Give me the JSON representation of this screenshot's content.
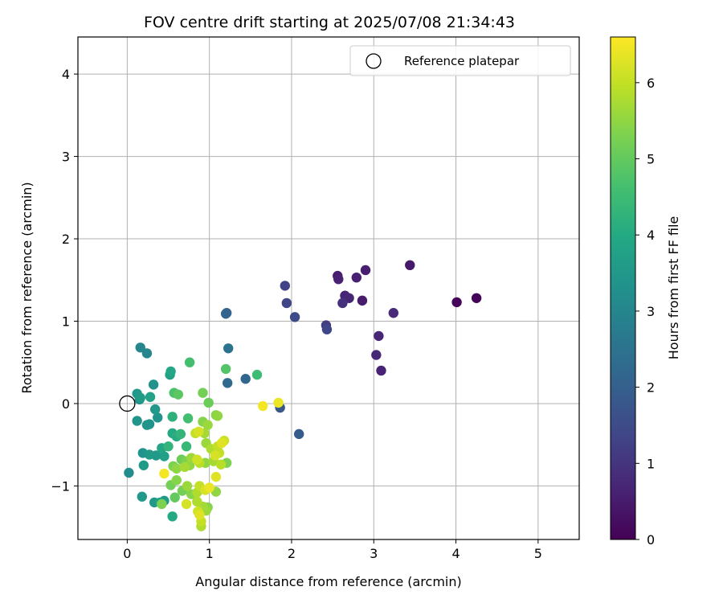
{
  "chart_data": {
    "type": "scatter",
    "title": "FOV centre drift starting at 2025/07/08 21:34:43",
    "xlabel": "Angular distance from reference (arcmin)",
    "ylabel": "Rotation from reference (arcmin)",
    "xlim": [
      -0.6,
      5.5
    ],
    "ylim": [
      -1.65,
      4.45
    ],
    "xticks": [
      0,
      1,
      2,
      3,
      4,
      5
    ],
    "xtick_labels": [
      "0",
      "1",
      "2",
      "3",
      "4",
      "5"
    ],
    "yticks": [
      -1,
      0,
      1,
      2,
      3,
      4
    ],
    "ytick_labels": [
      "−1",
      "0",
      "1",
      "2",
      "3",
      "4"
    ],
    "grid": true,
    "legend": {
      "position": "upper right",
      "entries": [
        "Reference platepar"
      ]
    },
    "reference_point": {
      "x": 0,
      "y": 0,
      "marker": "open-circle"
    },
    "colorbar": {
      "label": "Hours from first FF file",
      "min": 0,
      "max": 6.6,
      "ticks": [
        0,
        1,
        2,
        3,
        4,
        5,
        6
      ],
      "tick_labels": [
        "0",
        "1",
        "2",
        "3",
        "4",
        "5",
        "6"
      ],
      "colormap": "viridis"
    },
    "series": [
      {
        "points": [
          {
            "x": 4.25,
            "y": 1.28,
            "c": 0.05
          },
          {
            "x": 4.01,
            "y": 1.23,
            "c": 0.1
          },
          {
            "x": 3.44,
            "y": 1.68,
            "c": 0.45
          },
          {
            "x": 3.24,
            "y": 1.1,
            "c": 0.8
          },
          {
            "x": 3.09,
            "y": 0.4,
            "c": 0.65
          },
          {
            "x": 3.06,
            "y": 0.82,
            "c": 0.7
          },
          {
            "x": 3.03,
            "y": 0.59,
            "c": 0.75
          },
          {
            "x": 2.9,
            "y": 1.62,
            "c": 0.55
          },
          {
            "x": 2.86,
            "y": 1.25,
            "c": 0.5
          },
          {
            "x": 2.79,
            "y": 1.53,
            "c": 0.6
          },
          {
            "x": 2.7,
            "y": 1.28,
            "c": 0.7
          },
          {
            "x": 2.65,
            "y": 1.31,
            "c": 0.65
          },
          {
            "x": 2.62,
            "y": 1.22,
            "c": 0.9
          },
          {
            "x": 2.57,
            "y": 1.51,
            "c": 0.6
          },
          {
            "x": 2.56,
            "y": 1.55,
            "c": 0.55
          },
          {
            "x": 2.43,
            "y": 0.9,
            "c": 1.4
          },
          {
            "x": 2.42,
            "y": 0.95,
            "c": 1.2
          },
          {
            "x": 2.09,
            "y": -0.37,
            "c": 1.9
          },
          {
            "x": 2.04,
            "y": 1.05,
            "c": 1.5
          },
          {
            "x": 1.94,
            "y": 1.22,
            "c": 1.35
          },
          {
            "x": 1.92,
            "y": 1.43,
            "c": 1.3
          },
          {
            "x": 1.86,
            "y": -0.05,
            "c": 1.8
          },
          {
            "x": 1.44,
            "y": 0.3,
            "c": 2.2
          },
          {
            "x": 1.23,
            "y": 0.67,
            "c": 2.5
          },
          {
            "x": 1.22,
            "y": 0.25,
            "c": 2.3
          },
          {
            "x": 1.2,
            "y": 1.09,
            "c": 2.1
          },
          {
            "x": 1.21,
            "y": 1.1,
            "c": 2.1
          },
          {
            "x": 0.16,
            "y": 0.68,
            "c": 3.0
          },
          {
            "x": 0.24,
            "y": 0.61,
            "c": 3.0
          },
          {
            "x": 0.12,
            "y": 0.12,
            "c": 3.5
          },
          {
            "x": 0.16,
            "y": 0.07,
            "c": 3.6
          },
          {
            "x": 0.15,
            "y": 0.05,
            "c": 3.3
          },
          {
            "x": 0.32,
            "y": 0.23,
            "c": 3.3
          },
          {
            "x": 0.28,
            "y": 0.08,
            "c": 3.8
          },
          {
            "x": 0.34,
            "y": -0.07,
            "c": 3.5
          },
          {
            "x": 0.37,
            "y": -0.17,
            "c": 3.4
          },
          {
            "x": 0.12,
            "y": -0.21,
            "c": 3.4
          },
          {
            "x": 0.27,
            "y": -0.25,
            "c": 3.3
          },
          {
            "x": 0.24,
            "y": -0.26,
            "c": 3.4
          },
          {
            "x": 0.52,
            "y": 0.35,
            "c": 3.7
          },
          {
            "x": 0.53,
            "y": 0.39,
            "c": 3.9
          },
          {
            "x": 0.02,
            "y": -0.84,
            "c": 3.2
          },
          {
            "x": 0.19,
            "y": -0.6,
            "c": 3.4
          },
          {
            "x": 0.2,
            "y": -0.75,
            "c": 3.6
          },
          {
            "x": 0.27,
            "y": -0.62,
            "c": 3.6
          },
          {
            "x": 0.35,
            "y": -0.63,
            "c": 3.5
          },
          {
            "x": 0.42,
            "y": -0.54,
            "c": 3.9
          },
          {
            "x": 0.45,
            "y": -0.64,
            "c": 3.7
          },
          {
            "x": 0.5,
            "y": -0.52,
            "c": 4.3
          },
          {
            "x": 0.18,
            "y": -1.13,
            "c": 3.5
          },
          {
            "x": 0.33,
            "y": -1.2,
            "c": 3.5
          },
          {
            "x": 0.4,
            "y": -1.2,
            "c": 3.8
          },
          {
            "x": 0.45,
            "y": -1.18,
            "c": 3.6
          },
          {
            "x": 0.55,
            "y": -1.37,
            "c": 4.0
          },
          {
            "x": 0.55,
            "y": -0.36,
            "c": 4.0
          },
          {
            "x": 0.6,
            "y": -0.4,
            "c": 4.1
          },
          {
            "x": 0.65,
            "y": -0.37,
            "c": 4.3
          },
          {
            "x": 0.55,
            "y": -0.16,
            "c": 4.2
          },
          {
            "x": 0.57,
            "y": 0.13,
            "c": 4.7
          },
          {
            "x": 0.62,
            "y": 0.11,
            "c": 4.9
          },
          {
            "x": 0.74,
            "y": -0.18,
            "c": 4.6
          },
          {
            "x": 0.72,
            "y": -0.52,
            "c": 4.4
          },
          {
            "x": 0.76,
            "y": 0.5,
            "c": 4.6
          },
          {
            "x": 0.99,
            "y": 0.01,
            "c": 5.1
          },
          {
            "x": 1.08,
            "y": -0.14,
            "c": 5.4
          },
          {
            "x": 1.1,
            "y": -0.15,
            "c": 5.5
          },
          {
            "x": 1.2,
            "y": 0.42,
            "c": 4.8
          },
          {
            "x": 1.58,
            "y": 0.35,
            "c": 4.5
          },
          {
            "x": 0.92,
            "y": 0.13,
            "c": 5.2
          },
          {
            "x": 0.92,
            "y": -0.22,
            "c": 5.4
          },
          {
            "x": 0.98,
            "y": -0.26,
            "c": 5.6
          },
          {
            "x": 0.94,
            "y": -0.36,
            "c": 5.7
          },
          {
            "x": 0.83,
            "y": -0.36,
            "c": 6.0
          },
          {
            "x": 0.87,
            "y": -0.34,
            "c": 6.2
          },
          {
            "x": 0.96,
            "y": -0.48,
            "c": 5.6
          },
          {
            "x": 1.02,
            "y": -0.55,
            "c": 5.8
          },
          {
            "x": 1.1,
            "y": -0.52,
            "c": 6.0
          },
          {
            "x": 1.15,
            "y": -0.48,
            "c": 6.3
          },
          {
            "x": 1.18,
            "y": -0.45,
            "c": 6.1
          },
          {
            "x": 1.21,
            "y": -0.72,
            "c": 5.3
          },
          {
            "x": 1.07,
            "y": -0.63,
            "c": 6.2
          },
          {
            "x": 1.12,
            "y": -0.6,
            "c": 6.0
          },
          {
            "x": 1.05,
            "y": -0.7,
            "c": 5.7
          },
          {
            "x": 1.14,
            "y": -0.74,
            "c": 5.9
          },
          {
            "x": 0.95,
            "y": -0.72,
            "c": 5.5
          },
          {
            "x": 0.88,
            "y": -0.72,
            "c": 5.9
          },
          {
            "x": 0.85,
            "y": -0.68,
            "c": 6.1
          },
          {
            "x": 0.78,
            "y": -0.66,
            "c": 5.6
          },
          {
            "x": 0.72,
            "y": -0.7,
            "c": 5.3
          },
          {
            "x": 0.66,
            "y": -0.68,
            "c": 5.1
          },
          {
            "x": 0.56,
            "y": -0.76,
            "c": 5.3
          },
          {
            "x": 0.6,
            "y": -0.79,
            "c": 5.5
          },
          {
            "x": 0.7,
            "y": -0.77,
            "c": 5.7
          },
          {
            "x": 0.76,
            "y": -0.75,
            "c": 5.5
          },
          {
            "x": 0.45,
            "y": -0.85,
            "c": 6.5
          },
          {
            "x": 0.53,
            "y": -0.99,
            "c": 5.2
          },
          {
            "x": 0.6,
            "y": -0.93,
            "c": 5.4
          },
          {
            "x": 0.67,
            "y": -1.06,
            "c": 5.2
          },
          {
            "x": 0.73,
            "y": -1.0,
            "c": 5.6
          },
          {
            "x": 0.78,
            "y": -1.1,
            "c": 5.4
          },
          {
            "x": 0.85,
            "y": -1.08,
            "c": 5.8
          },
          {
            "x": 0.88,
            "y": -1.0,
            "c": 6.0
          },
          {
            "x": 0.95,
            "y": -1.05,
            "c": 6.2
          },
          {
            "x": 1.0,
            "y": -1.02,
            "c": 6.4
          },
          {
            "x": 1.08,
            "y": -1.07,
            "c": 5.5
          },
          {
            "x": 1.08,
            "y": -0.89,
            "c": 6.3
          },
          {
            "x": 0.58,
            "y": -1.14,
            "c": 5.0
          },
          {
            "x": 0.42,
            "y": -1.22,
            "c": 5.3
          },
          {
            "x": 0.72,
            "y": -1.22,
            "c": 6.2
          },
          {
            "x": 0.85,
            "y": -1.19,
            "c": 5.8
          },
          {
            "x": 0.92,
            "y": -1.25,
            "c": 5.7
          },
          {
            "x": 0.98,
            "y": -1.26,
            "c": 5.4
          },
          {
            "x": 0.96,
            "y": -1.3,
            "c": 5.6
          },
          {
            "x": 0.88,
            "y": -1.35,
            "c": 6.3
          },
          {
            "x": 0.9,
            "y": -1.43,
            "c": 6.0
          },
          {
            "x": 0.9,
            "y": -1.49,
            "c": 5.8
          },
          {
            "x": 0.86,
            "y": -1.31,
            "c": 6.1
          },
          {
            "x": 1.65,
            "y": -0.03,
            "c": 6.5
          },
          {
            "x": 1.84,
            "y": 0.01,
            "c": 6.4
          }
        ]
      }
    ]
  }
}
